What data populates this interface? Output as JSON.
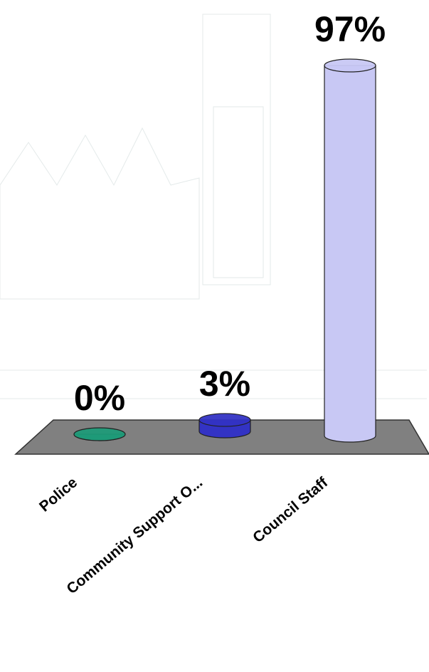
{
  "chart_data": {
    "type": "bar3d",
    "categories": [
      "Police",
      "Community Support O...",
      "Council Staff"
    ],
    "series": [
      {
        "values": [
          0,
          3,
          97
        ],
        "value_labels": [
          "0%",
          "3%",
          "97%"
        ],
        "colors": [
          "#1f9a78",
          "#3333c4",
          "#c8c8f4"
        ]
      }
    ]
  }
}
